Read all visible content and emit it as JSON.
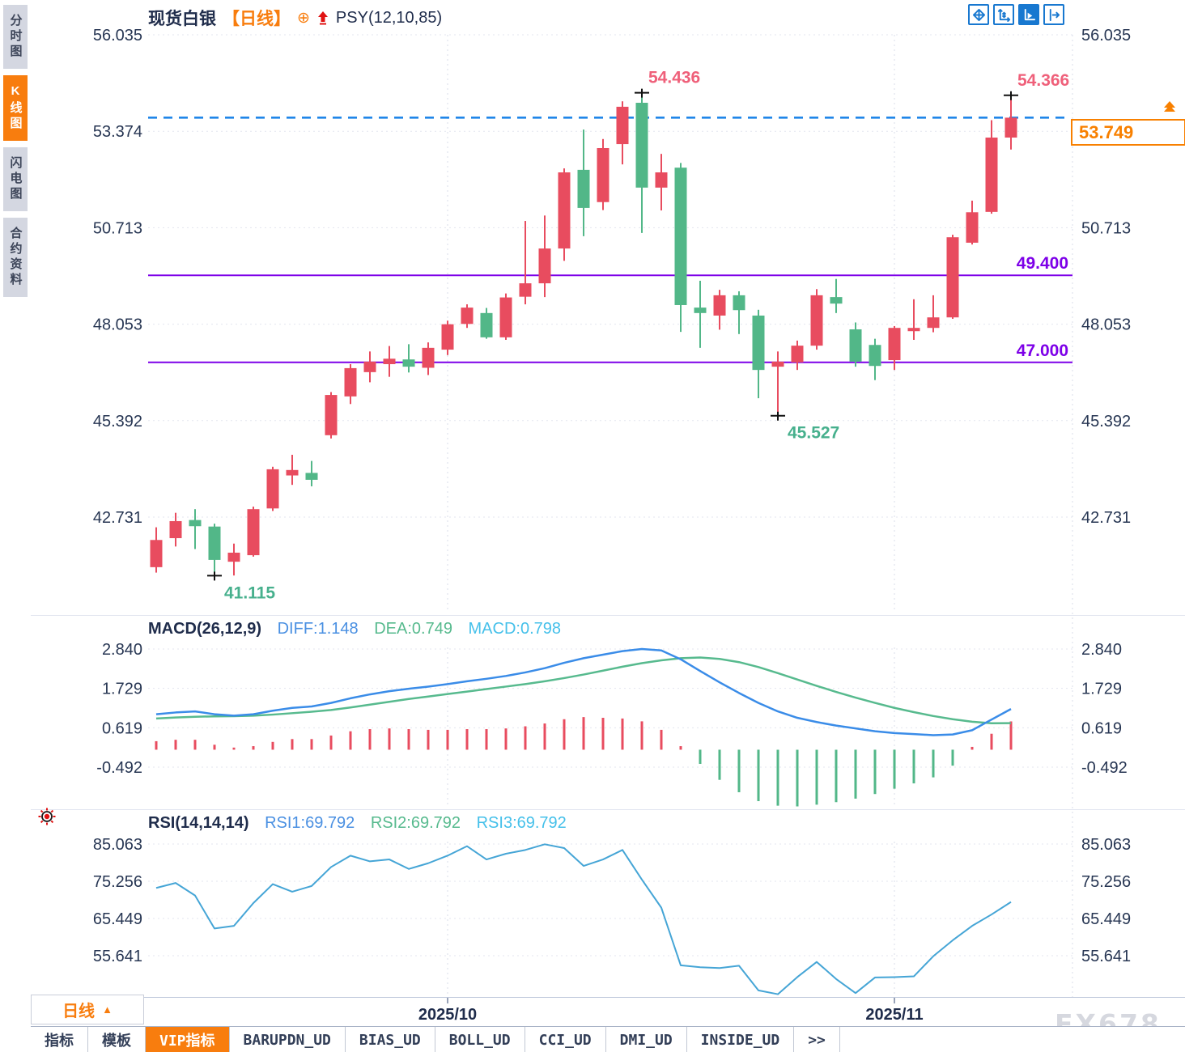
{
  "sidebar": {
    "tabs": [
      {
        "label": "分时图",
        "active": false
      },
      {
        "label": "K线图",
        "active": true
      },
      {
        "label": "闪电图",
        "active": false
      },
      {
        "label": "合约资料",
        "active": false
      }
    ]
  },
  "header": {
    "symbol": "现货白银",
    "period": "【日线】",
    "plus_icon": "⊕",
    "indicator": "PSY(12,10,85)"
  },
  "toolbar": {
    "buttons": [
      {
        "name": "pan-cross",
        "active": false
      },
      {
        "name": "axis-zoom",
        "active": false
      },
      {
        "name": "axis-play",
        "active": true
      },
      {
        "name": "jump-latest",
        "active": false
      }
    ]
  },
  "price_box": {
    "value": "53.749"
  },
  "macd_pane": {
    "title": "MACD(26,12,9)",
    "diff": "DIFF:1.148",
    "dea": "DEA:0.749",
    "macd": "MACD:0.798"
  },
  "rsi_pane": {
    "title": "RSI(14,14,14)",
    "rsi1": "RSI1:69.792",
    "rsi2": "RSI2:69.792",
    "rsi3": "RSI3:69.792"
  },
  "period_selector": {
    "label": "日线",
    "arrow": "▲"
  },
  "bottom_tabs": [
    {
      "label": "指标",
      "active": false
    },
    {
      "label": "模板",
      "active": false
    },
    {
      "label": "VIP指标",
      "active": true
    },
    {
      "label": "BARUPDN_UD",
      "active": false
    },
    {
      "label": "BIAS_UD",
      "active": false
    },
    {
      "label": "BOLL_UD",
      "active": false
    },
    {
      "label": "CCI_UD",
      "active": false
    },
    {
      "label": "DMI_UD",
      "active": false
    },
    {
      "label": "INSIDE_UD",
      "active": false
    },
    {
      "label": ">>",
      "active": false
    }
  ],
  "watermark": "FX678",
  "colors": {
    "up": "#e84c5f",
    "down": "#52b788",
    "accent_orange": "#f87d0e",
    "level_purple": "#7d00e8",
    "current_blue": "#1781e8",
    "diff_blue": "#3a8ce8",
    "dea_green": "#57ba8e",
    "rsi_line": "#45a5d6",
    "high_label": "#ef607a",
    "low_label": "#47b08d",
    "axis_text": "#273653",
    "grid": "#e3e5ef"
  },
  "chart_data": [
    {
      "type": "candlestick",
      "title": "现货白银 日线",
      "y_axis": [
        56.035,
        53.374,
        50.713,
        48.053,
        45.392,
        42.731
      ],
      "x_ticks": [
        {
          "label": "2025/10",
          "index": 15
        },
        {
          "label": "2025/11",
          "index": 38
        }
      ],
      "candles": [
        [
          41.35,
          42.45,
          41.2,
          42.1
        ],
        [
          42.15,
          42.85,
          41.92,
          42.62
        ],
        [
          42.65,
          42.95,
          41.85,
          42.48
        ],
        [
          42.47,
          42.55,
          41.115,
          41.55
        ],
        [
          41.5,
          42.0,
          41.12,
          41.75
        ],
        [
          41.68,
          43.02,
          41.64,
          42.95
        ],
        [
          42.97,
          44.12,
          42.9,
          44.05
        ],
        [
          43.88,
          44.45,
          43.62,
          44.03
        ],
        [
          43.95,
          44.28,
          43.58,
          43.76
        ],
        [
          44.99,
          46.18,
          44.9,
          46.1
        ],
        [
          46.06,
          46.95,
          45.85,
          46.84
        ],
        [
          46.73,
          47.3,
          46.45,
          47.02
        ],
        [
          46.95,
          47.45,
          46.6,
          47.1
        ],
        [
          47.08,
          47.5,
          46.72,
          46.88
        ],
        [
          46.85,
          47.55,
          46.65,
          47.4
        ],
        [
          47.35,
          48.15,
          47.2,
          48.05
        ],
        [
          48.06,
          48.6,
          47.95,
          48.51
        ],
        [
          48.36,
          48.5,
          47.65,
          47.69
        ],
        [
          47.69,
          48.9,
          47.62,
          48.79
        ],
        [
          48.81,
          50.9,
          48.6,
          49.18
        ],
        [
          49.18,
          51.05,
          48.8,
          50.14
        ],
        [
          50.14,
          52.35,
          49.8,
          52.24
        ],
        [
          52.31,
          53.42,
          50.48,
          51.26
        ],
        [
          51.42,
          53.16,
          51.2,
          52.91
        ],
        [
          53.02,
          54.2,
          52.46,
          54.05
        ],
        [
          54.16,
          54.436,
          50.57,
          51.82
        ],
        [
          51.82,
          52.75,
          51.19,
          52.24
        ],
        [
          52.37,
          52.5,
          47.84,
          48.58
        ],
        [
          48.51,
          49.25,
          47.4,
          48.36
        ],
        [
          48.29,
          49.0,
          47.9,
          48.85
        ],
        [
          48.85,
          48.96,
          47.78,
          48.44
        ],
        [
          48.29,
          48.45,
          46.01,
          46.79
        ],
        [
          46.88,
          47.3,
          45.527,
          47.02
        ],
        [
          47.0,
          47.6,
          46.79,
          47.46
        ],
        [
          47.46,
          49.02,
          47.35,
          48.85
        ],
        [
          48.8,
          49.3,
          48.36,
          48.62
        ],
        [
          47.91,
          48.1,
          46.88,
          47.02
        ],
        [
          47.48,
          47.65,
          46.51,
          46.9
        ],
        [
          47.06,
          48.0,
          46.79,
          47.95
        ],
        [
          47.86,
          48.74,
          47.62,
          47.95
        ],
        [
          47.95,
          48.85,
          47.83,
          48.24
        ],
        [
          48.24,
          50.52,
          48.2,
          50.45
        ],
        [
          50.3,
          51.46,
          50.25,
          51.14
        ],
        [
          51.15,
          53.68,
          51.1,
          53.2
        ],
        [
          53.2,
          54.366,
          52.87,
          53.749
        ]
      ],
      "levels": [
        {
          "price": 49.4,
          "label": "49.400"
        },
        {
          "price": 47.0,
          "label": "47.000"
        }
      ],
      "current_price": {
        "value": 53.749,
        "label": "53.749"
      },
      "annotations": [
        {
          "index": 3,
          "type": "low",
          "price": 41.115,
          "label": "41.115"
        },
        {
          "index": 25,
          "type": "high",
          "price": 54.436,
          "label": "54.436"
        },
        {
          "index": 32,
          "type": "low",
          "price": 45.527,
          "label": "45.527"
        },
        {
          "index": 44,
          "type": "high",
          "price": 54.366,
          "label": "54.366"
        }
      ]
    },
    {
      "type": "macd",
      "title": "MACD(26,12,9)",
      "y_axis": [
        2.84,
        1.729,
        0.619,
        -0.492
      ],
      "diff": [
        1.0,
        1.05,
        1.08,
        1.0,
        0.96,
        1.0,
        1.1,
        1.18,
        1.22,
        1.32,
        1.45,
        1.56,
        1.65,
        1.72,
        1.78,
        1.85,
        1.93,
        2.0,
        2.08,
        2.18,
        2.3,
        2.45,
        2.58,
        2.68,
        2.78,
        2.84,
        2.8,
        2.55,
        2.22,
        1.9,
        1.6,
        1.32,
        1.08,
        0.9,
        0.78,
        0.68,
        0.6,
        0.52,
        0.47,
        0.44,
        0.41,
        0.43,
        0.55,
        0.85,
        1.148
      ],
      "dea": [
        0.88,
        0.91,
        0.93,
        0.94,
        0.945,
        0.96,
        0.99,
        1.03,
        1.07,
        1.12,
        1.19,
        1.27,
        1.35,
        1.43,
        1.5,
        1.57,
        1.64,
        1.71,
        1.78,
        1.85,
        1.93,
        2.02,
        2.12,
        2.23,
        2.34,
        2.44,
        2.52,
        2.58,
        2.6,
        2.56,
        2.47,
        2.33,
        2.16,
        1.98,
        1.8,
        1.63,
        1.47,
        1.32,
        1.18,
        1.06,
        0.95,
        0.86,
        0.79,
        0.745,
        0.749
      ],
      "hist": [
        0.24,
        0.28,
        0.28,
        0.14,
        0.06,
        0.1,
        0.22,
        0.3,
        0.3,
        0.4,
        0.52,
        0.58,
        0.6,
        0.58,
        0.56,
        0.56,
        0.58,
        0.58,
        0.6,
        0.66,
        0.74,
        0.86,
        0.92,
        0.9,
        0.88,
        0.8,
        0.56,
        0.1,
        -0.4,
        -0.85,
        -1.2,
        -1.45,
        -1.58,
        -1.6,
        -1.55,
        -1.48,
        -1.38,
        -1.25,
        -1.1,
        -0.95,
        -0.78,
        -0.45,
        0.08,
        0.45,
        0.798
      ]
    },
    {
      "type": "line",
      "title": "RSI(14,14,14)",
      "y_axis": [
        85.063,
        75.256,
        65.449,
        55.641
      ],
      "values": [
        73.5,
        74.8,
        71.5,
        62.8,
        63.5,
        69.5,
        74.5,
        72.5,
        74.0,
        79.0,
        82.0,
        80.5,
        81.0,
        78.5,
        80.0,
        82.0,
        84.5,
        81.0,
        82.5,
        83.5,
        85.0,
        84.0,
        79.3,
        81.0,
        83.5,
        75.7,
        68.3,
        53.1,
        52.6,
        52.4,
        53.0,
        46.5,
        45.5,
        50.0,
        54.0,
        49.5,
        45.8,
        49.9,
        50.0,
        50.2,
        55.5,
        59.7,
        63.5,
        66.5,
        69.792
      ]
    }
  ]
}
